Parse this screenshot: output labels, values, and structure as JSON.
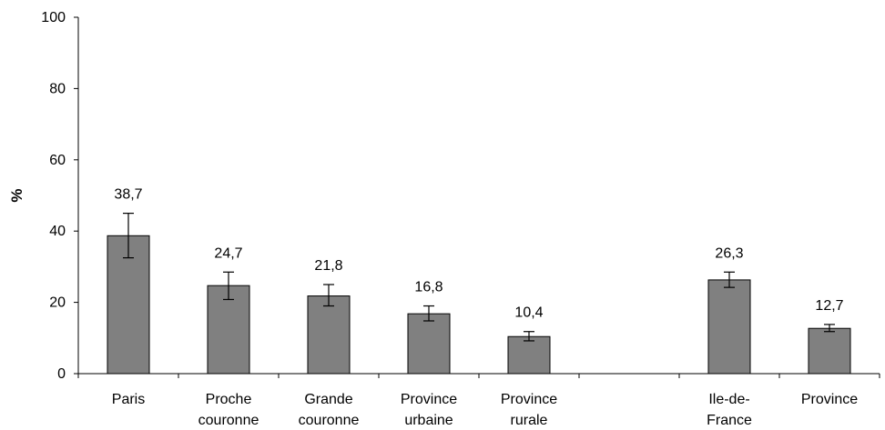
{
  "chart_data": {
    "type": "bar",
    "categories": [
      [
        "Paris"
      ],
      [
        "Proche",
        "couronne"
      ],
      [
        "Grande",
        "couronne"
      ],
      [
        "Province",
        "urbaine"
      ],
      [
        "Province",
        "rurale"
      ],
      [],
      [
        "Ile-de-",
        "France"
      ],
      [
        "Province"
      ]
    ],
    "values": [
      38.7,
      24.7,
      21.8,
      16.8,
      10.4,
      null,
      26.3,
      12.7
    ],
    "data_labels": [
      "38,7",
      "24,7",
      "21,8",
      "16,8",
      "10,4",
      "",
      "26,3",
      "12,7"
    ],
    "error_low": [
      32.5,
      20.8,
      19.0,
      14.8,
      9.2,
      null,
      24.2,
      11.8
    ],
    "error_high": [
      45.0,
      28.5,
      25.0,
      19.0,
      11.8,
      null,
      28.5,
      13.8
    ],
    "ylabel": "%",
    "ylim": [
      0,
      100
    ],
    "yticks": [
      0,
      20,
      40,
      60,
      80,
      100
    ],
    "bar_color": "#808080",
    "grid": false
  }
}
